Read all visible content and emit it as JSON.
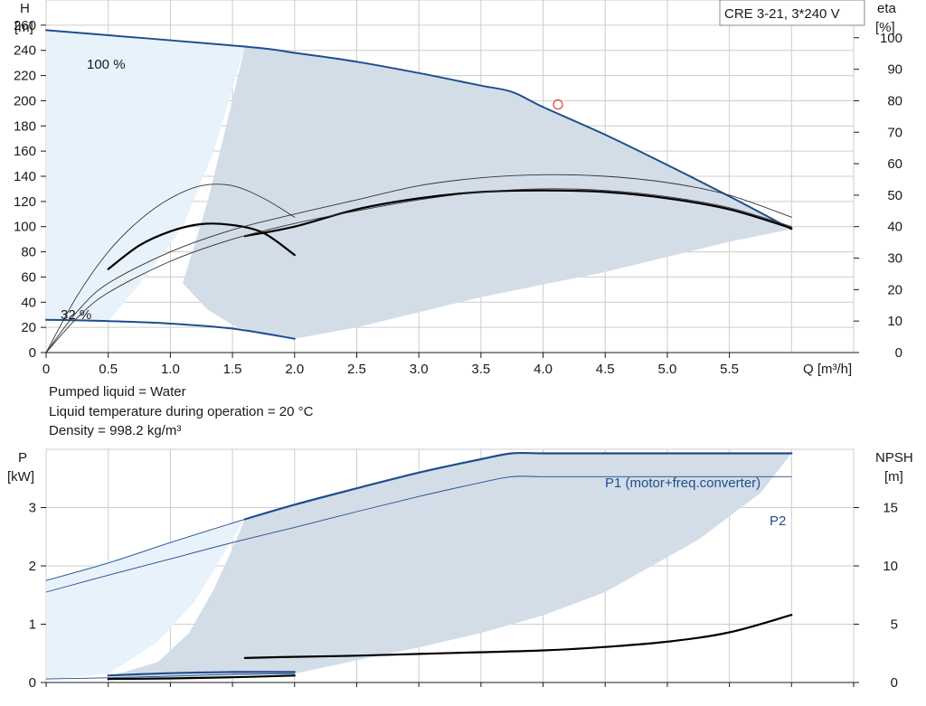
{
  "notes": {
    "line1": "Pumped liquid = Water",
    "line2": "Liquid temperature during operation = 20 °C",
    "line3": "Density = 998.2 kg/m³"
  },
  "colors": {
    "blue": "#1f4e8c",
    "black": "#000000",
    "envelope_fill": "#d3dde8",
    "light_fill": "#e8f2fb",
    "grid": "#cccccc"
  },
  "chart_data": [
    {
      "type": "line",
      "title": "CRE 3-21, 3*240 V",
      "xlabel": "Q [m³/h]",
      "ylabel": "H\n[m]",
      "y2label": "eta\n[%]",
      "xlim": [
        0,
        6.5
      ],
      "ylim": [
        0,
        280
      ],
      "y2lim": [
        0,
        112
      ],
      "x_ticks": [
        0,
        0.5,
        1.0,
        1.5,
        2.0,
        2.5,
        3.0,
        3.5,
        4.0,
        4.5,
        5.0,
        5.5
      ],
      "x_tick_labels": [
        "0",
        "0.5",
        "1.0",
        "1.5",
        "2.0",
        "2.5",
        "3.0",
        "3.5",
        "4.0",
        "4.5",
        "5.0",
        "5.5"
      ],
      "y_ticks": [
        0,
        20,
        40,
        60,
        80,
        100,
        120,
        140,
        160,
        180,
        200,
        220,
        240,
        260
      ],
      "y2_ticks": [
        0,
        10,
        20,
        30,
        40,
        50,
        60,
        70,
        80,
        90,
        100
      ],
      "grid": true,
      "annotations": [
        "100 %",
        "32 %"
      ],
      "duty_point": {
        "x": 4.12,
        "y": 197
      },
      "series": [
        {
          "name": "100 %",
          "axis": "H",
          "color": "#1f4e8c",
          "x": [
            0,
            1.6,
            2.0,
            2.5,
            3.0,
            3.5,
            3.75,
            4.0,
            4.5,
            5.0,
            5.5,
            6.0
          ],
          "y": [
            256,
            243,
            238,
            231,
            222,
            212,
            207,
            195,
            173,
            149,
            124,
            98
          ]
        },
        {
          "name": "32 %",
          "axis": "H",
          "color": "#1f4e8c",
          "x": [
            0,
            0.5,
            1.0,
            1.5,
            2.0
          ],
          "y": [
            26,
            25,
            23,
            19,
            11
          ]
        },
        {
          "name": "",
          "axis": "eta",
          "color": "#000000",
          "width": 2.2,
          "x": [
            1.6,
            2.0,
            2.5,
            3.0,
            3.5,
            4.0,
            4.5,
            5.0,
            5.5,
            6.0
          ],
          "y": [
            37,
            40,
            45.5,
            49,
            51,
            51.5,
            51,
            49,
            45.5,
            39.5
          ]
        },
        {
          "name": "",
          "axis": "eta",
          "color": "#000000",
          "width": 2.2,
          "x": [
            0.5,
            0.75,
            1.0,
            1.25,
            1.5,
            1.75,
            2.0
          ],
          "y": [
            26.5,
            34,
            38.5,
            40.8,
            40.5,
            38,
            31
          ]
        },
        {
          "name": "",
          "axis": "eta",
          "color": "#333333",
          "width": 0.9,
          "x": [
            0,
            0.25,
            0.5,
            0.75,
            1.0,
            1.25,
            1.5,
            1.75,
            2.0
          ],
          "y": [
            0,
            18,
            32,
            42,
            49,
            53,
            53,
            49,
            43
          ]
        },
        {
          "name": "",
          "axis": "eta",
          "color": "#333333",
          "width": 0.9,
          "x": [
            0,
            0.25,
            0.5,
            1.0,
            1.5,
            2.0,
            2.5,
            3.0,
            3.5,
            4.0,
            4.5,
            5.0,
            5.5,
            6.0
          ],
          "y": [
            0,
            13,
            22,
            32,
            39,
            44,
            48.5,
            53,
            55.5,
            56.5,
            56,
            54,
            50,
            43
          ]
        },
        {
          "name": "",
          "axis": "eta",
          "color": "#333333",
          "width": 0.9,
          "x": [
            0,
            0.25,
            0.5,
            1.0,
            1.5,
            2.0,
            2.5,
            3.0,
            3.5,
            4.0,
            4.5,
            5.0,
            5.5,
            6.0
          ],
          "y": [
            0,
            11,
            19,
            29,
            36,
            41,
            45,
            48.5,
            51,
            52,
            51.5,
            49.5,
            46,
            40
          ]
        }
      ],
      "envelope": {
        "x": [
          1.6,
          2.0,
          2.5,
          3.0,
          3.5,
          3.75,
          4.0,
          4.5,
          5.0,
          5.5,
          6.0,
          5.5,
          5.0,
          4.5,
          4.0,
          3.5,
          3.0,
          2.5,
          2.0,
          1.75,
          1.5,
          1.25,
          1.0,
          0.75,
          0.5,
          0.25,
          0,
          0.5,
          1.0,
          1.5
        ],
        "y": [
          243,
          238,
          231,
          222,
          212,
          207,
          195,
          173,
          149,
          124,
          98,
          90,
          78,
          65,
          55,
          46,
          36,
          28,
          11,
          11,
          11,
          11,
          11,
          11,
          11,
          11,
          0,
          25,
          23,
          19
        ]
      }
    },
    {
      "type": "line",
      "title": "",
      "xlabel": "",
      "ylabel": "P\n[kW]",
      "y2label": "NPSH\n[m]",
      "xlim": [
        0,
        6.5
      ],
      "ylim": [
        0,
        4
      ],
      "y2lim": [
        0,
        20
      ],
      "y_ticks": [
        0,
        1,
        2,
        3
      ],
      "y2_ticks": [
        0,
        5,
        10,
        15
      ],
      "grid": true,
      "series": [
        {
          "name": "P1 (motor+freq.converter)",
          "axis": "P",
          "color": "#1f4e8c",
          "width": 2.2,
          "x": [
            1.6,
            2.0,
            2.5,
            3.0,
            3.5,
            3.75,
            4.0,
            4.5,
            5.0,
            5.5,
            6.0
          ],
          "y": [
            2.8,
            3.05,
            3.33,
            3.6,
            3.83,
            3.93,
            3.93,
            3.93,
            3.93,
            3.93,
            3.93
          ]
        },
        {
          "name": "",
          "axis": "P",
          "color": "#1f4e8c",
          "width": 0.9,
          "x": [
            0,
            0.5,
            1.0,
            1.6
          ],
          "y": [
            1.75,
            2.05,
            2.4,
            2.8
          ]
        },
        {
          "name": "P2",
          "axis": "P",
          "color": "#1f4e8c",
          "width": 0.9,
          "x": [
            0,
            0.5,
            1.0,
            1.5,
            2.0,
            2.5,
            3.0,
            3.5,
            3.75,
            4.0,
            4.5,
            5.0,
            5.5,
            6.0
          ],
          "y": [
            1.55,
            1.84,
            2.12,
            2.4,
            2.66,
            2.93,
            3.19,
            3.43,
            3.53,
            3.53,
            3.53,
            3.53,
            3.53,
            3.53
          ]
        },
        {
          "name": "",
          "axis": "P",
          "color": "#1f4e8c",
          "width": 2.2,
          "x": [
            0.5,
            1.0,
            1.5,
            2.0
          ],
          "y": [
            0.12,
            0.16,
            0.18,
            0.18
          ]
        },
        {
          "name": "",
          "axis": "P",
          "color": "#1f4e8c",
          "width": 0.9,
          "x": [
            0,
            0.5,
            1.0,
            1.5,
            2.0
          ],
          "y": [
            0.06,
            0.08,
            0.11,
            0.14,
            0.15
          ]
        },
        {
          "name": "",
          "axis": "NPSH",
          "color": "#000000",
          "width": 2.2,
          "x": [
            1.6,
            2.0,
            2.5,
            3.0,
            3.5,
            4.0,
            4.5,
            5.0,
            5.5,
            6.0
          ],
          "y": [
            2.1,
            2.2,
            2.3,
            2.45,
            2.6,
            2.75,
            3.05,
            3.5,
            4.3,
            5.8
          ]
        },
        {
          "name": "",
          "axis": "NPSH",
          "color": "#000000",
          "width": 2.2,
          "x": [
            0.5,
            1.0,
            1.5,
            2.0
          ],
          "y": [
            0.3,
            0.35,
            0.45,
            0.6
          ]
        }
      ],
      "envelope": {
        "x": [
          1.6,
          2.0,
          2.5,
          3.0,
          3.5,
          3.75,
          4.0,
          4.5,
          5.0,
          5.5,
          6.0,
          5.5,
          5.0,
          4.5,
          4.0,
          3.5,
          3.0,
          2.5,
          2.0,
          1.5,
          1.0,
          0.5,
          0,
          0,
          0.5,
          1.0,
          1.6
        ],
        "y": [
          2.8,
          3.05,
          3.33,
          3.6,
          3.83,
          3.93,
          3.93,
          3.93,
          3.93,
          3.93,
          3.93,
          3.3,
          2.45,
          1.9,
          1.55,
          1.2,
          0.95,
          0.72,
          0.5,
          0.3,
          0.14,
          0.06,
          0.03,
          1.75,
          2.05,
          2.4,
          2.8
        ]
      }
    }
  ]
}
